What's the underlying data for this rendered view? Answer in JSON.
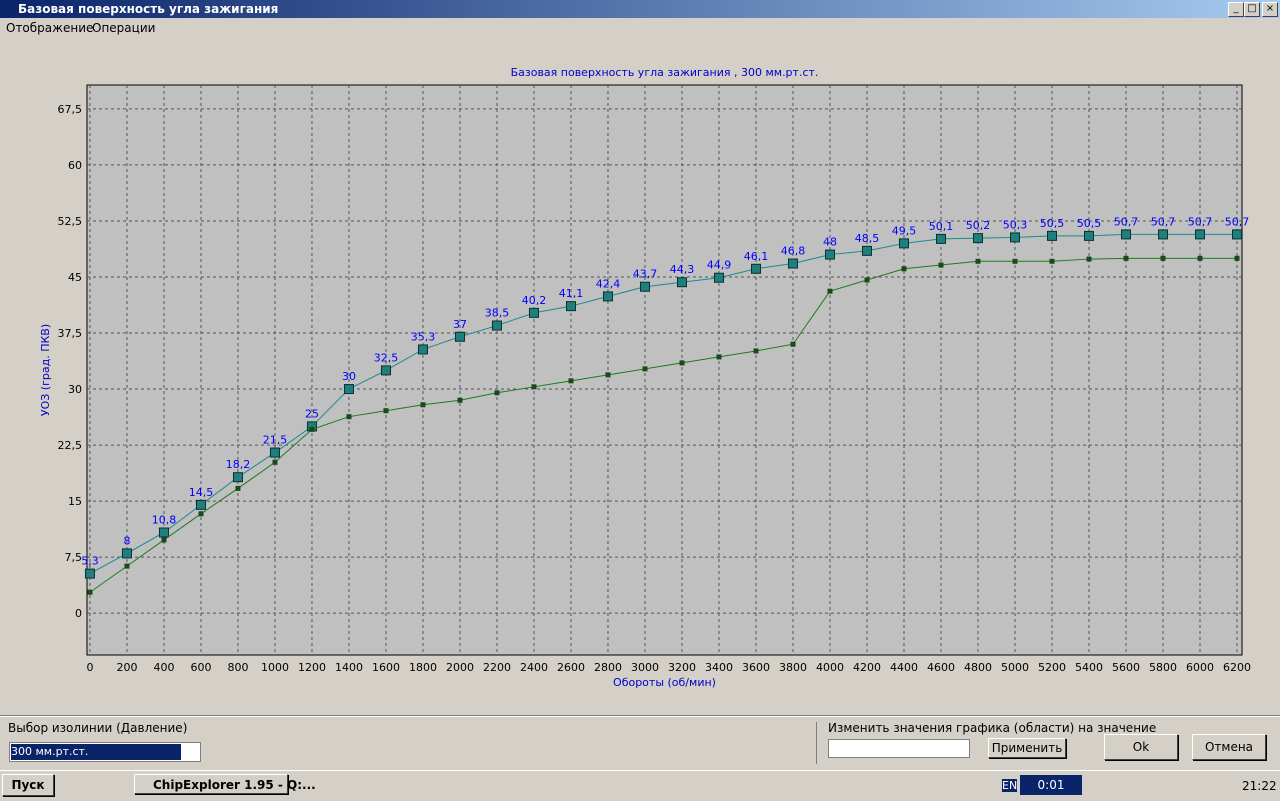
{
  "window": {
    "title": "Базовая поверхность угла зажигания"
  },
  "menu": [
    "Отображение",
    "Операции"
  ],
  "chart_data": {
    "type": "line",
    "title": "Базовая поверхность угла зажигания , 300 мм.рт.ст.",
    "x_label": "Обороты (об/мин)",
    "y_label": "УОЗ (град. ПКВ)",
    "x": [
      0,
      200,
      400,
      600,
      800,
      1000,
      1200,
      1400,
      1600,
      1800,
      2000,
      2200,
      2400,
      2600,
      2800,
      3000,
      3200,
      3400,
      3600,
      3800,
      4000,
      4200,
      4400,
      4600,
      4800,
      5000,
      5200,
      5400,
      5600,
      5800,
      6000,
      6200
    ],
    "series": [
      {
        "color": "#1a8c8c",
        "marker_color": "#1f7f7f",
        "label_color": "#0000ff",
        "values": [
          5.3,
          8,
          10.8,
          14.5,
          18.2,
          21.5,
          25,
          30,
          32.5,
          35.3,
          37,
          38.5,
          40.2,
          41.1,
          42.4,
          43.7,
          44.3,
          44.9,
          46.1,
          46.8,
          48,
          48.5,
          49.5,
          50.1,
          50.2,
          50.3,
          50.5,
          50.5,
          50.7,
          50.7,
          50.7,
          50.7
        ],
        "value_labels": [
          "5,3",
          "8",
          "10,8",
          "14,5",
          "18,2",
          "21,5",
          "25",
          "30",
          "32,5",
          "35,3",
          "37",
          "38,5",
          "40,2",
          "41,1",
          "42,4",
          "43,7",
          "44,3",
          "44,9",
          "46,1",
          "46,8",
          "48",
          "48,5",
          "49,5",
          "50,1",
          "50,2",
          "50,3",
          "50,5",
          "50,5",
          "50,7",
          "50,7",
          "50,7",
          "50,7"
        ]
      },
      {
        "color": "#1e7a1e",
        "marker_color": "#1a4a1a",
        "values": [
          2.8,
          6.3,
          9.8,
          13.3,
          16.7,
          20.2,
          24.6,
          26.3,
          27.1,
          27.9,
          28.5,
          29.5,
          30.3,
          31.1,
          31.9,
          32.7,
          33.5,
          34.3,
          35.1,
          36.0,
          43.1,
          44.6,
          46.1,
          46.6,
          47.1,
          47.1,
          47.1,
          47.4,
          47.5,
          47.5,
          47.5,
          47.5
        ]
      }
    ],
    "xlim": [
      -16,
      6227
    ],
    "ylim": [
      -5.6,
      70.7
    ],
    "xticks": [
      0,
      200,
      400,
      600,
      800,
      1000,
      1200,
      1400,
      1600,
      1800,
      2000,
      2200,
      2400,
      2600,
      2800,
      3000,
      3200,
      3400,
      3600,
      3800,
      4000,
      4200,
      4400,
      4600,
      4800,
      5000,
      5200,
      5400,
      5600,
      5800,
      6000,
      6200
    ],
    "yticks": [
      0,
      {
        "value": 7.5,
        "label": "7,5"
      },
      15,
      {
        "value": 22.5,
        "label": "22,5"
      },
      30,
      {
        "value": 37.5,
        "label": "37,5"
      },
      45,
      {
        "value": 52.5,
        "label": "52,5"
      },
      60,
      {
        "value": 67.5,
        "label": "67,5"
      }
    ],
    "grid": true
  },
  "controls": {
    "isoline_label": "Выбор изолинии (Давление)",
    "isoline_value": "300 мм.рт.ст.",
    "change_label": "Изменить значения графика (области) на значение",
    "apply": "Применить",
    "ok": "Ok",
    "cancel": "Отмена"
  },
  "taskbar": {
    "start": "Пуск",
    "task": "ChipExplorer  1.95 - Q:...",
    "lang": "EN",
    "timer": "0:01",
    "clock": "21:22"
  }
}
